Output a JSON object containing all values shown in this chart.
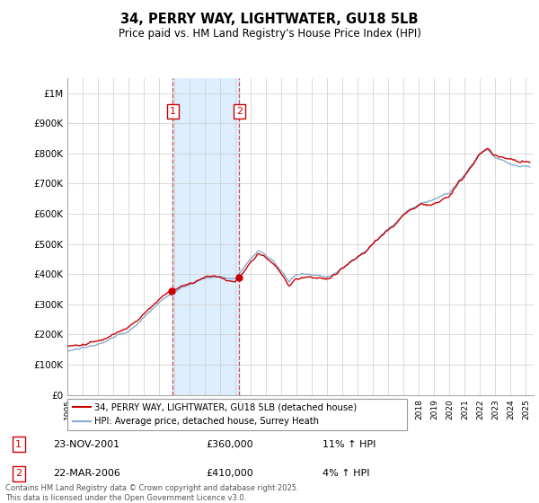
{
  "title": "34, PERRY WAY, LIGHTWATER, GU18 5LB",
  "subtitle": "Price paid vs. HM Land Registry's House Price Index (HPI)",
  "ylabel_ticks": [
    "£0",
    "£100K",
    "£200K",
    "£300K",
    "£400K",
    "£500K",
    "£600K",
    "£700K",
    "£800K",
    "£900K",
    "£1M"
  ],
  "ytick_values": [
    0,
    100000,
    200000,
    300000,
    400000,
    500000,
    600000,
    700000,
    800000,
    900000,
    1000000
  ],
  "ylim": [
    0,
    1050000
  ],
  "xlim_min": 1995,
  "xlim_max": 2025.5,
  "legend_line1": "34, PERRY WAY, LIGHTWATER, GU18 5LB (detached house)",
  "legend_line2": "HPI: Average price, detached house, Surrey Heath",
  "marker1_x": 2001.9,
  "marker2_x": 2006.25,
  "marker1_label": "1",
  "marker2_label": "2",
  "marker1_date": "23-NOV-2001",
  "marker1_price": "£360,000",
  "marker1_hpi": "11% ↑ HPI",
  "marker2_date": "22-MAR-2006",
  "marker2_price": "£410,000",
  "marker2_hpi": "4% ↑ HPI",
  "footer": "Contains HM Land Registry data © Crown copyright and database right 2025.\nThis data is licensed under the Open Government Licence v3.0.",
  "line_color_red": "#cc0000",
  "line_color_blue": "#88aacc",
  "shaded_color": "#ddeeff",
  "marker_box_color": "#cc0000",
  "background_color": "#ffffff",
  "grid_color": "#cccccc"
}
